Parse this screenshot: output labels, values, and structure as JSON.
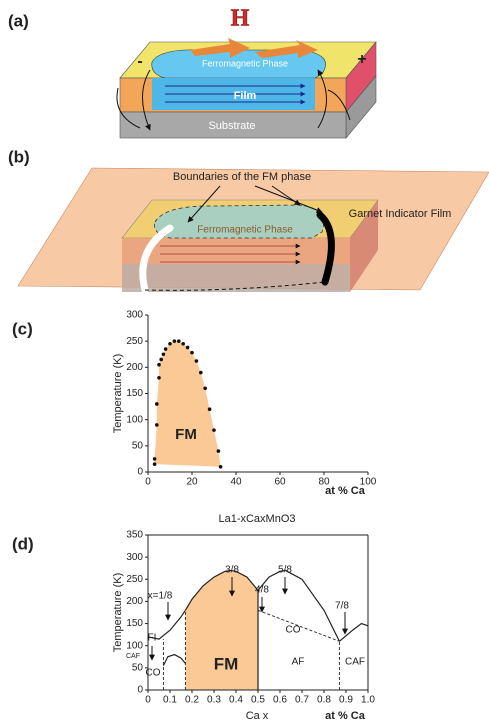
{
  "panel_a": {
    "label": "(a)",
    "field": "H",
    "phase": "Ferromagnetic Phase",
    "film": "Film",
    "substrate": "Substrate",
    "minus": "-",
    "plus": "+"
  },
  "panel_b": {
    "label": "(b)",
    "annotation": "Boundaries of the FM phase",
    "indicator": "Garnet Indicator Film",
    "phase": "Ferromagnetic Phase"
  },
  "chart_data": [
    {
      "type": "scatter",
      "panel_label": "(c)",
      "ylabel": "Temperature (K)",
      "xlabel": "La1-xCaxMnO3",
      "annotations": [
        "FM",
        "at % Ca"
      ],
      "color": "#111111",
      "area_color": "#fbc996",
      "x": [
        3,
        3,
        4,
        4,
        5,
        5,
        6,
        7,
        8,
        10,
        12,
        14,
        16,
        18,
        20,
        22,
        24,
        26,
        28,
        30,
        32,
        33
      ],
      "values": [
        15,
        25,
        90,
        130,
        180,
        205,
        215,
        225,
        235,
        245,
        250,
        250,
        245,
        238,
        228,
        212,
        190,
        160,
        120,
        80,
        40,
        10
      ],
      "xlim": [
        0,
        100
      ],
      "ylim": [
        0,
        300
      ],
      "xticks": [
        0,
        20,
        40,
        60,
        80,
        100
      ],
      "yticks": [
        0,
        50,
        100,
        150,
        200,
        250,
        300
      ]
    },
    {
      "type": "line",
      "panel_label": "(d)",
      "ylabel": "Temperature (K)",
      "xlabel": "Ca x",
      "annotations": [
        "x=1/8",
        "3/8",
        "4/8",
        "5/8",
        "7/8",
        "FI",
        "CO",
        "CAF",
        "FM",
        "CO",
        "AF",
        "CAF",
        "at % Ca"
      ],
      "color": "#222222",
      "xlim": [
        0,
        1
      ],
      "ylim": [
        0,
        350
      ],
      "xticks": [
        0,
        0.1,
        0.2,
        0.3,
        0.4,
        0.5,
        0.6,
        0.7,
        0.8,
        0.9,
        {
          "value": 1,
          "label": "1.0"
        }
      ],
      "yticks": [
        0,
        50,
        100,
        150,
        200,
        250,
        300,
        350
      ],
      "series": [
        {
          "x": [
            0,
            0.05,
            0.1,
            0.15,
            0.17
          ],
          "values": [
            120,
            115,
            135,
            165,
            180
          ]
        },
        {
          "x": [
            0.17,
            0.2,
            0.25,
            0.3,
            0.35,
            0.375,
            0.4,
            0.45,
            0.5
          ],
          "values": [
            180,
            205,
            235,
            255,
            268,
            270,
            268,
            255,
            225
          ],
          "fill": "#fbc996"
        },
        {
          "x": [
            0.5,
            0.55,
            0.6,
            0.625,
            0.7,
            0.8,
            0.87
          ],
          "values": [
            225,
            255,
            268,
            270,
            250,
            180,
            110
          ]
        },
        {
          "x": [
            0.87,
            0.93,
            0.97,
            1
          ],
          "values": [
            110,
            135,
            150,
            145
          ]
        },
        {
          "x": [
            0.5,
            0.87
          ],
          "values": [
            180,
            110
          ],
          "dash": true
        },
        {
          "x": [
            0.07,
            0.09,
            0.12,
            0.15,
            0.17
          ],
          "values": [
            55,
            75,
            80,
            72,
            60
          ]
        },
        {
          "x": [
            0.5,
            0.5
          ],
          "values": [
            0,
            225
          ]
        },
        {
          "x": [
            0.87,
            0.87
          ],
          "values": [
            0,
            110
          ],
          "dash": true
        },
        {
          "x": [
            0.07,
            0.07
          ],
          "values": [
            0,
            115
          ],
          "dash": true
        },
        {
          "x": [
            0.17,
            0.17
          ],
          "values": [
            0,
            180
          ],
          "dash": true
        }
      ]
    }
  ]
}
